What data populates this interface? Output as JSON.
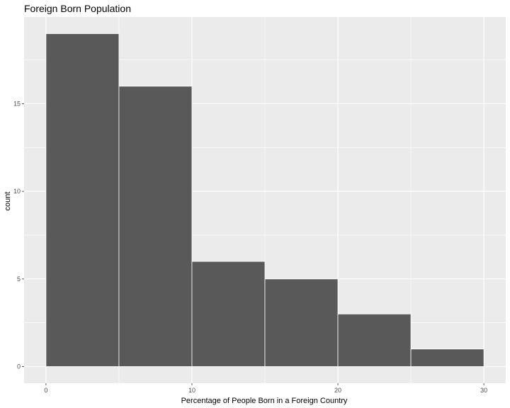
{
  "chart_data": {
    "type": "bar",
    "title": "Foreign Born Population",
    "xlabel": "Percentage of People Born in a Foreign Country",
    "ylabel": "count",
    "bins": [
      {
        "start": 0,
        "end": 5,
        "count": 19
      },
      {
        "start": 5,
        "end": 10,
        "count": 16
      },
      {
        "start": 10,
        "end": 15,
        "count": 6
      },
      {
        "start": 15,
        "end": 20,
        "count": 5
      },
      {
        "start": 20,
        "end": 25,
        "count": 3
      },
      {
        "start": 25,
        "end": 30,
        "count": 1
      }
    ],
    "x_ticks": [
      0,
      10,
      20,
      30
    ],
    "y_ticks": [
      0,
      5,
      10,
      15
    ],
    "xlim": [
      -1.5,
      31.5
    ],
    "ylim": [
      -0.95,
      19.95
    ],
    "grid": true,
    "colors": {
      "panel": "#ebebeb",
      "grid": "#ffffff",
      "bar_fill": "#595959",
      "bar_outline": "#ffffff",
      "tick_label": "#4d4d4d"
    }
  }
}
